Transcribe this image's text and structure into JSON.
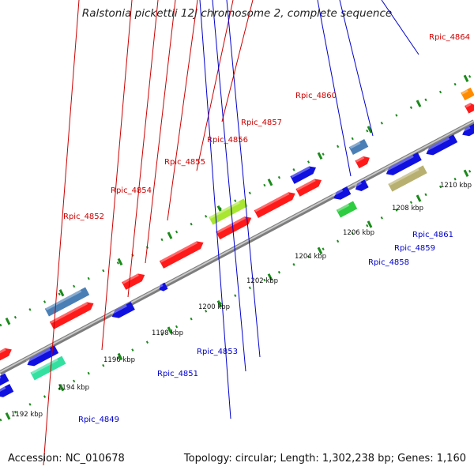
{
  "title": "Ralstonia pickettii 12J chromosome 2, complete sequence",
  "footer": {
    "accession": "Accession: NC_010678",
    "summary": "Topology: circular; Length: 1,302,238 bp; Genes: 1,160"
  },
  "ticks": [
    {
      "label": "1192 kbp",
      "pos": 1192
    },
    {
      "label": "1194 kbp",
      "pos": 1194
    },
    {
      "label": "1196 kbp",
      "pos": 1196
    },
    {
      "label": "1198 kbp",
      "pos": 1198
    },
    {
      "label": "1200 kbp",
      "pos": 1200
    },
    {
      "label": "1202 kbp",
      "pos": 1202
    },
    {
      "label": "1204 kbp",
      "pos": 1204
    },
    {
      "label": "1206 kbp",
      "pos": 1206
    },
    {
      "label": "1208 kbp",
      "pos": 1208
    },
    {
      "label": "1210 kbp",
      "pos": 1210
    }
  ],
  "gene_labels": [
    {
      "name": "Rpic_4849",
      "color": "#0000cc"
    },
    {
      "name": "Rpic_4851",
      "color": "#0000cc"
    },
    {
      "name": "Rpic_4852",
      "color": "#cc0000"
    },
    {
      "name": "Rpic_4853",
      "color": "#0000cc"
    },
    {
      "name": "Rpic_4854",
      "color": "#cc0000"
    },
    {
      "name": "Rpic_4855",
      "color": "#cc0000"
    },
    {
      "name": "Rpic_4856",
      "color": "#cc0000"
    },
    {
      "name": "Rpic_4857",
      "color": "#cc0000"
    },
    {
      "name": "Rpic_4858",
      "color": "#0000cc"
    },
    {
      "name": "Rpic_4859",
      "color": "#0000cc"
    },
    {
      "name": "Rpic_4860",
      "color": "#cc0000"
    },
    {
      "name": "Rpic_4861",
      "color": "#0000cc"
    },
    {
      "name": "Rpic_4864",
      "color": "#cc0000"
    }
  ],
  "colors": {
    "forward": "#ff1a1a",
    "reverse": "#1010e0",
    "steelblue": "#4a7fb5",
    "lime": "#a8e632",
    "green": "#2ecc40",
    "teal": "#33e0a0",
    "khaki": "#b8b070",
    "orange": "#ff8c00",
    "backbone": "#999999",
    "tick_green": "#1a8a1a"
  }
}
